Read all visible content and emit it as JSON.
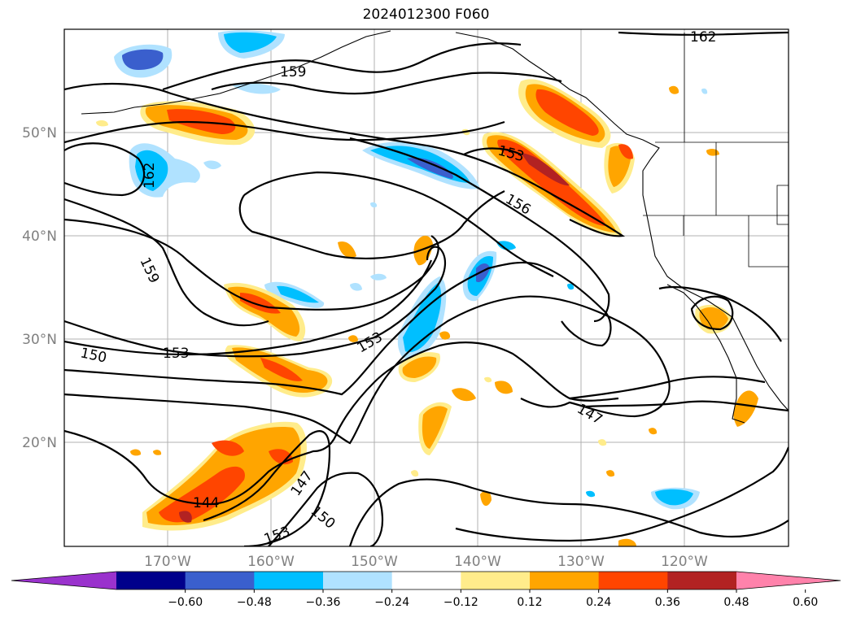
{
  "title": "2024012300 F060",
  "lat_labels": [
    "50°N",
    "40°N",
    "30°N",
    "20°N"
  ],
  "lon_labels": [
    "170°W",
    "160°W",
    "150°W",
    "140°W",
    "130°W",
    "120°W"
  ],
  "colorbar": {
    "ticks": [
      "−0.60",
      "−0.48",
      "−0.36",
      "−0.24",
      "−0.12",
      "0.12",
      "0.24",
      "0.36",
      "0.48",
      "0.60"
    ],
    "colors": [
      "#9a32cd",
      "#00008b",
      "#3a5fcd",
      "#00bfff",
      "#b0e2ff",
      "#ffffff",
      "#ffec8b",
      "#ffa500",
      "#ff4500",
      "#b22222",
      "#ff82ab"
    ]
  },
  "contour_labels": [
    "162",
    "159",
    "162",
    "159",
    "153",
    "156",
    "150",
    "153",
    "153",
    "147",
    "147",
    "150",
    "144",
    "153"
  ]
}
